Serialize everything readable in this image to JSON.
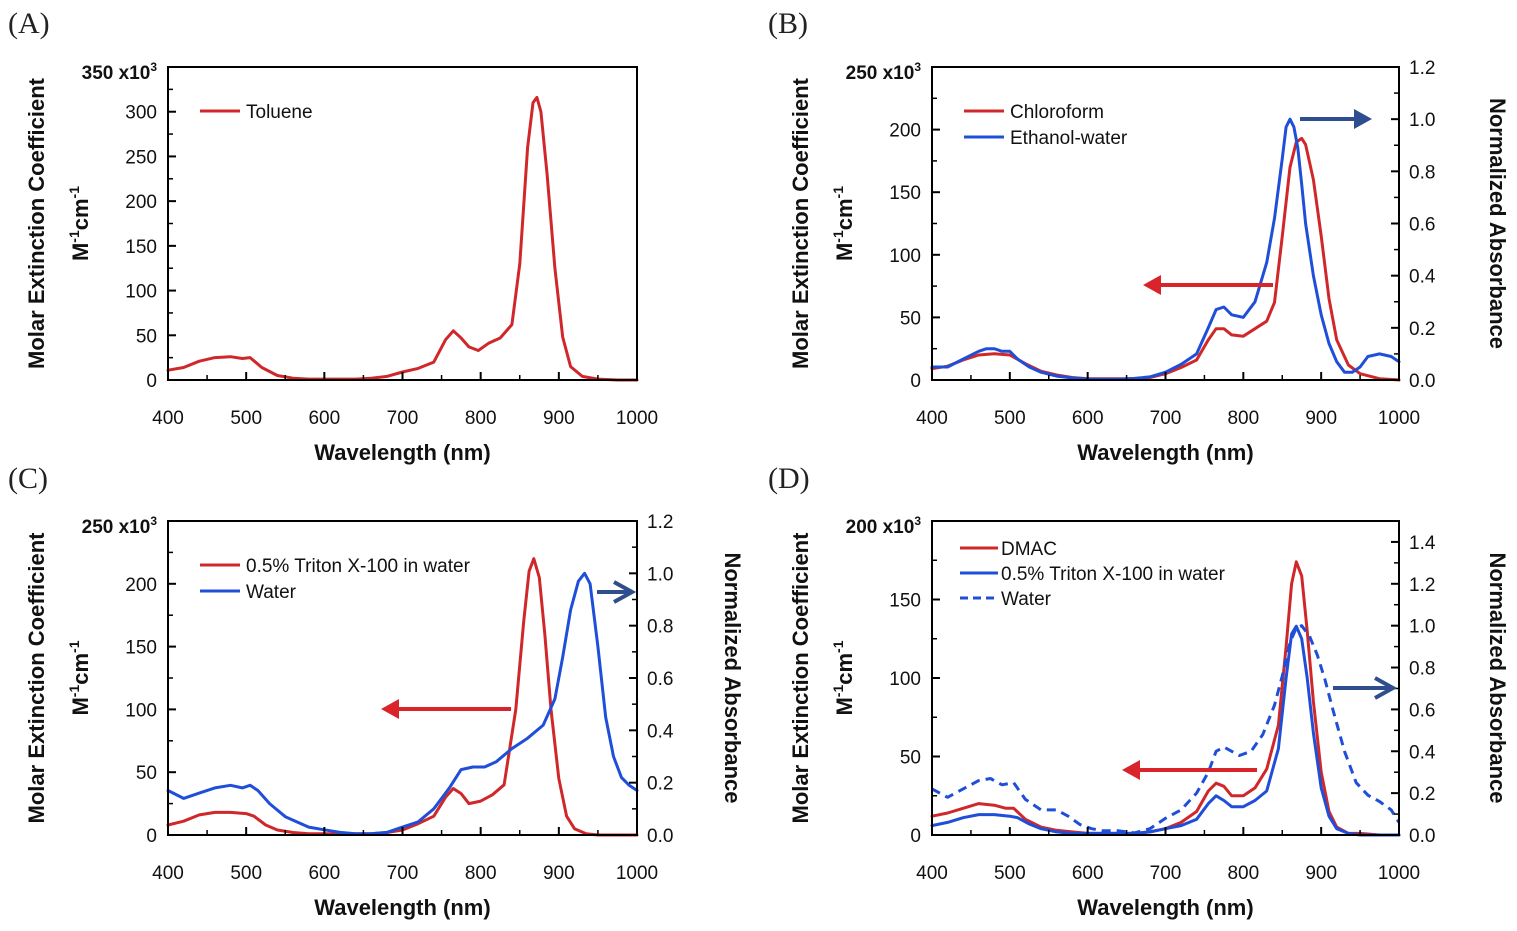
{
  "chart_data": [
    {
      "type": "line",
      "panel": "(A)",
      "xlabel": "Wavelength (nm)",
      "ylabel_line1": "Molar Extinction Coefficient",
      "ylabel_line2": {
        "base": "M",
        "exp1": "-1",
        "mid": "cm",
        "exp2": "-1"
      },
      "y_multiplier": {
        "base": "350 x10",
        "exp": "3"
      },
      "xlim": [
        400,
        1000
      ],
      "ylim": [
        0,
        350
      ],
      "xticks": [
        "400",
        "500",
        "600",
        "700",
        "800",
        "900",
        "1000"
      ],
      "yticks": [
        "0",
        "50",
        "100",
        "150",
        "200",
        "250",
        "300"
      ],
      "ytick_values": [
        0,
        50,
        100,
        150,
        200,
        250,
        300
      ],
      "series": [
        {
          "name": "Toluene",
          "color": "#d0282a",
          "dash": false,
          "axis": "left",
          "x": [
            400,
            420,
            440,
            460,
            480,
            495,
            505,
            520,
            540,
            560,
            580,
            600,
            620,
            640,
            660,
            680,
            700,
            720,
            740,
            755,
            765,
            775,
            785,
            797,
            810,
            825,
            840,
            850,
            860,
            867,
            872,
            877,
            885,
            895,
            905,
            915,
            930,
            950,
            975,
            1000
          ],
          "y": [
            11,
            14,
            21,
            25,
            26,
            24,
            25,
            14,
            5,
            2,
            1,
            1,
            1,
            1,
            2,
            4,
            9,
            13,
            20,
            45,
            55,
            47,
            37,
            33,
            41,
            47,
            62,
            130,
            260,
            310,
            316,
            300,
            230,
            125,
            48,
            15,
            4,
            1,
            0,
            0
          ]
        }
      ],
      "legend": [
        "Toluene"
      ]
    },
    {
      "type": "line",
      "panel": "(B)",
      "xlabel": "Wavelength (nm)",
      "ylabel_line1": "Molar Extinction Coefficient",
      "ylabel_line2": {
        "base": "M",
        "exp1": "-1",
        "mid": "cm",
        "exp2": "-1"
      },
      "y2label": "Normalized Absorbance",
      "y_multiplier": {
        "base": "250 x10",
        "exp": "3"
      },
      "xlim": [
        400,
        1000
      ],
      "ylim": [
        0,
        250
      ],
      "y2lim": [
        0,
        1.2
      ],
      "xticks": [
        "400",
        "500",
        "600",
        "700",
        "800",
        "900",
        "1000"
      ],
      "yticks": [
        "0",
        "50",
        "100",
        "150",
        "200"
      ],
      "ytick_values": [
        0,
        50,
        100,
        150,
        200
      ],
      "y2ticks": [
        "0.0",
        "0.2",
        "0.4",
        "0.6",
        "0.8",
        "1.0",
        "1.2"
      ],
      "y2tick_values": [
        0,
        0.2,
        0.4,
        0.6,
        0.8,
        1.0,
        1.2
      ],
      "series": [
        {
          "name": "Chloroform",
          "color": "#d0282a",
          "dash": false,
          "axis": "left",
          "x": [
            400,
            420,
            440,
            460,
            480,
            500,
            520,
            540,
            560,
            580,
            600,
            620,
            640,
            660,
            680,
            700,
            720,
            740,
            755,
            765,
            775,
            785,
            800,
            815,
            830,
            840,
            850,
            860,
            868,
            875,
            880,
            890,
            900,
            910,
            920,
            935,
            950,
            975,
            1000
          ],
          "y": [
            9,
            11,
            16,
            20,
            21,
            20,
            13,
            7,
            4,
            2,
            1,
            1,
            1,
            1,
            2,
            5,
            10,
            16,
            32,
            41,
            41,
            36,
            35,
            41,
            47,
            62,
            115,
            170,
            190,
            193,
            188,
            160,
            115,
            65,
            32,
            12,
            5,
            1,
            0
          ]
        },
        {
          "name": "Ethanol-water",
          "color": "#1f4fd8",
          "dash": false,
          "axis": "right",
          "x": [
            400,
            420,
            440,
            460,
            470,
            480,
            490,
            500,
            510,
            525,
            540,
            560,
            580,
            600,
            620,
            640,
            660,
            680,
            700,
            720,
            740,
            755,
            765,
            775,
            785,
            800,
            815,
            830,
            840,
            850,
            855,
            860,
            865,
            870,
            875,
            880,
            890,
            900,
            910,
            920,
            930,
            940,
            950,
            960,
            975,
            990,
            1000
          ],
          "y": [
            0.05,
            0.05,
            0.08,
            0.11,
            0.12,
            0.12,
            0.11,
            0.11,
            0.08,
            0.05,
            0.03,
            0.015,
            0.008,
            0.004,
            0.003,
            0.003,
            0.006,
            0.012,
            0.03,
            0.06,
            0.1,
            0.2,
            0.27,
            0.28,
            0.25,
            0.24,
            0.3,
            0.45,
            0.62,
            0.85,
            0.97,
            1.0,
            0.97,
            0.89,
            0.75,
            0.6,
            0.4,
            0.25,
            0.14,
            0.07,
            0.03,
            0.03,
            0.05,
            0.09,
            0.1,
            0.09,
            0.07
          ]
        }
      ],
      "legend": [
        "Chloroform",
        "Ethanol-water"
      ]
    },
    {
      "type": "line",
      "panel": "(C)",
      "xlabel": "Wavelength (nm)",
      "ylabel_line1": "Molar Extinction Coefficient",
      "ylabel_line2": {
        "base": "M",
        "exp1": "-1",
        "mid": "cm",
        "exp2": "-1"
      },
      "y2label": "Normalized Absorbance",
      "y_multiplier": {
        "base": "250 x10",
        "exp": "3"
      },
      "xlim": [
        400,
        1000
      ],
      "ylim": [
        0,
        250
      ],
      "y2lim": [
        0,
        1.2
      ],
      "xticks": [
        "400",
        "500",
        "600",
        "700",
        "800",
        "900",
        "1000"
      ],
      "yticks": [
        "0",
        "50",
        "100",
        "150",
        "200"
      ],
      "ytick_values": [
        0,
        50,
        100,
        150,
        200
      ],
      "y2ticks": [
        "0.0",
        "0.2",
        "0.4",
        "0.6",
        "0.8",
        "1.0",
        "1.2"
      ],
      "y2tick_values": [
        0,
        0.2,
        0.4,
        0.6,
        0.8,
        1.0,
        1.2
      ],
      "series": [
        {
          "name": "0.5% Triton X-100 in water",
          "color": "#d0282a",
          "dash": false,
          "axis": "left",
          "x": [
            400,
            420,
            440,
            460,
            480,
            500,
            510,
            525,
            540,
            560,
            580,
            600,
            620,
            640,
            660,
            680,
            700,
            720,
            740,
            755,
            765,
            775,
            785,
            800,
            815,
            830,
            845,
            855,
            862,
            868,
            875,
            882,
            890,
            900,
            910,
            920,
            935,
            950,
            975,
            1000
          ],
          "y": [
            8,
            11,
            16,
            18,
            18,
            17,
            15,
            8,
            4,
            2,
            1,
            1,
            1,
            1,
            1,
            2,
            4,
            9,
            15,
            30,
            37,
            33,
            25,
            27,
            32,
            40,
            100,
            170,
            210,
            220,
            205,
            160,
            100,
            45,
            15,
            5,
            1,
            0,
            0,
            0
          ]
        },
        {
          "name": "Water",
          "color": "#1f4fd8",
          "dash": false,
          "axis": "right",
          "x": [
            400,
            420,
            440,
            460,
            480,
            495,
            505,
            515,
            530,
            550,
            580,
            600,
            620,
            640,
            660,
            680,
            700,
            720,
            740,
            760,
            775,
            790,
            805,
            820,
            840,
            860,
            880,
            895,
            905,
            915,
            925,
            933,
            940,
            950,
            960,
            970,
            980,
            990,
            1000
          ],
          "y": [
            0.17,
            0.14,
            0.16,
            0.18,
            0.19,
            0.18,
            0.19,
            0.17,
            0.12,
            0.07,
            0.03,
            0.02,
            0.01,
            0.005,
            0.005,
            0.01,
            0.03,
            0.05,
            0.1,
            0.18,
            0.25,
            0.26,
            0.26,
            0.28,
            0.33,
            0.37,
            0.42,
            0.52,
            0.68,
            0.86,
            0.97,
            1.0,
            0.96,
            0.72,
            0.45,
            0.3,
            0.22,
            0.19,
            0.17
          ]
        }
      ],
      "legend": [
        "0.5% Triton X-100 in water",
        "Water"
      ]
    },
    {
      "type": "line",
      "panel": "(D)",
      "xlabel": "Wavelength (nm)",
      "ylabel_line1": "Molar Extinction Coefficient",
      "ylabel_line2": {
        "base": "M",
        "exp1": "-1",
        "mid": "cm",
        "exp2": "-1"
      },
      "y2label": "Normalized Absorbance",
      "y_multiplier": {
        "base": "200 x10",
        "exp": "3"
      },
      "xlim": [
        400,
        1000
      ],
      "ylim": [
        0,
        200
      ],
      "y2lim": [
        0,
        1.5
      ],
      "xticks": [
        "400",
        "500",
        "600",
        "700",
        "800",
        "900",
        "1000"
      ],
      "yticks": [
        "0",
        "50",
        "100",
        "150"
      ],
      "ytick_values": [
        0,
        50,
        100,
        150
      ],
      "y2ticks": [
        "0.0",
        "0.2",
        "0.4",
        "0.6",
        "0.8",
        "1.0",
        "1.2",
        "1.4"
      ],
      "y2tick_values": [
        0,
        0.2,
        0.4,
        0.6,
        0.8,
        1.0,
        1.2,
        1.4
      ],
      "series": [
        {
          "name": "DMAC",
          "color": "#d0282a",
          "dash": false,
          "axis": "left",
          "x": [
            400,
            420,
            440,
            460,
            480,
            495,
            505,
            520,
            540,
            560,
            580,
            600,
            620,
            640,
            660,
            680,
            700,
            720,
            740,
            755,
            765,
            775,
            785,
            800,
            815,
            830,
            845,
            855,
            862,
            868,
            875,
            882,
            890,
            900,
            910,
            920,
            935,
            950,
            975,
            1000
          ],
          "y": [
            12,
            14,
            17,
            20,
            19,
            17,
            17,
            10,
            5,
            3,
            2,
            1,
            1,
            1,
            1,
            2,
            4,
            8,
            15,
            28,
            33,
            31,
            25,
            25,
            30,
            42,
            70,
            120,
            160,
            174,
            165,
            130,
            85,
            40,
            15,
            5,
            1,
            1,
            0,
            0
          ]
        },
        {
          "name": "0.5% Triton X-100 in water",
          "color": "#1f4fd8",
          "dash": false,
          "axis": "left",
          "x": [
            400,
            420,
            440,
            460,
            480,
            500,
            510,
            525,
            540,
            560,
            580,
            600,
            620,
            640,
            660,
            680,
            700,
            720,
            740,
            755,
            765,
            775,
            785,
            800,
            815,
            830,
            845,
            855,
            862,
            868,
            875,
            882,
            890,
            900,
            910,
            920,
            935,
            950,
            975,
            1000
          ],
          "y": [
            6,
            8,
            11,
            13,
            13,
            12,
            11,
            7,
            4,
            2,
            1,
            1,
            1,
            1,
            1,
            2,
            4,
            6,
            10,
            20,
            25,
            22,
            18,
            18,
            22,
            28,
            55,
            100,
            128,
            133,
            125,
            100,
            65,
            30,
            12,
            4,
            1,
            0,
            0,
            0
          ]
        },
        {
          "name": "Water",
          "color": "#1f4fd8",
          "dash": true,
          "axis": "right",
          "x": [
            400,
            420,
            440,
            460,
            475,
            490,
            505,
            520,
            540,
            560,
            575,
            590,
            605,
            620,
            640,
            660,
            680,
            700,
            720,
            740,
            755,
            765,
            775,
            785,
            795,
            810,
            825,
            840,
            850,
            860,
            868,
            875,
            885,
            895,
            905,
            915,
            930,
            945,
            960,
            975,
            990,
            1000
          ],
          "y": [
            0.22,
            0.18,
            0.22,
            0.26,
            0.27,
            0.24,
            0.25,
            0.17,
            0.12,
            0.12,
            0.09,
            0.05,
            0.03,
            0.02,
            0.02,
            0.01,
            0.03,
            0.08,
            0.12,
            0.2,
            0.3,
            0.4,
            0.42,
            0.4,
            0.38,
            0.4,
            0.48,
            0.62,
            0.76,
            0.92,
            0.99,
            1.0,
            0.95,
            0.86,
            0.74,
            0.6,
            0.4,
            0.25,
            0.19,
            0.16,
            0.12,
            0.06
          ]
        }
      ],
      "legend": [
        "DMAC",
        "0.5% Triton X-100 in water",
        "Water"
      ]
    }
  ]
}
